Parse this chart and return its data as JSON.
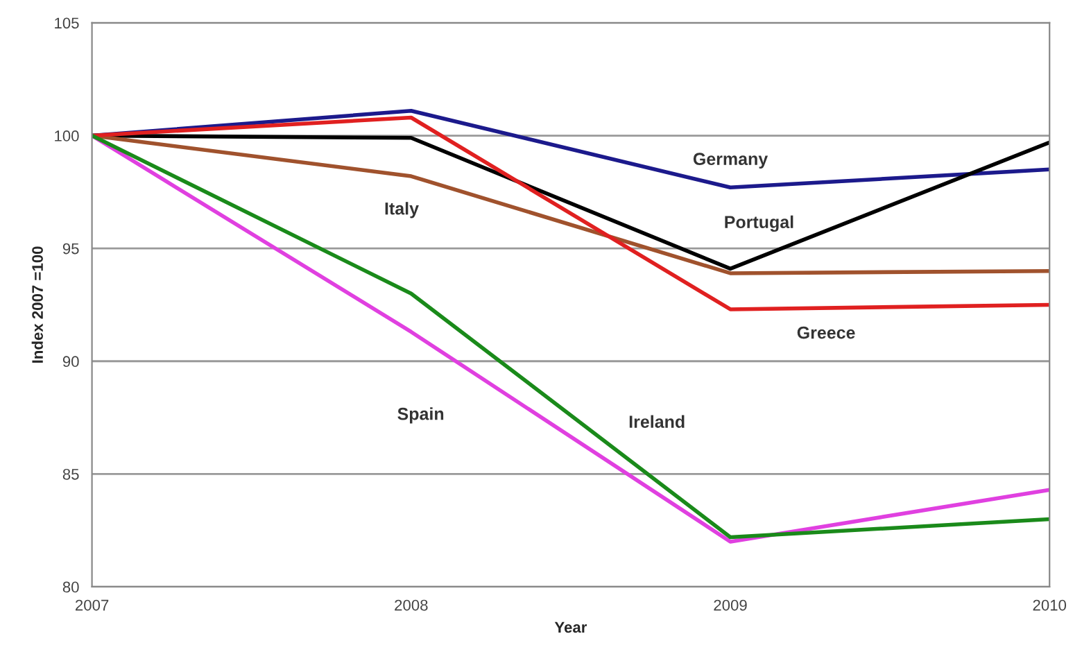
{
  "chart_data": {
    "type": "line",
    "xlabel": "Year",
    "ylabel": "Index 2007 =100",
    "x": [
      2007,
      2008,
      2009,
      2010
    ],
    "xlim": [
      2007,
      2010
    ],
    "xticks": [
      2007,
      2008,
      2009,
      2010
    ],
    "ylim": [
      80,
      105
    ],
    "yticks": [
      80,
      85,
      90,
      95,
      100,
      105
    ],
    "grid": "y",
    "legend": false,
    "marker": "none",
    "line_style": "solid",
    "series": [
      {
        "name": "Germany",
        "color": "#1c1a8c",
        "values": [
          100,
          101.1,
          97.7,
          98.5
        ]
      },
      {
        "name": "Portugal",
        "color": "#000000",
        "values": [
          100,
          99.9,
          94.1,
          99.7
        ]
      },
      {
        "name": "Italy",
        "color": "#a0522d",
        "values": [
          100,
          98.2,
          93.9,
          94.0
        ]
      },
      {
        "name": "Greece",
        "color": "#e02020",
        "values": [
          100,
          100.8,
          92.3,
          92.5
        ]
      },
      {
        "name": "Spain",
        "color": "#e040e0",
        "values": [
          100,
          91.3,
          82.0,
          84.3
        ]
      },
      {
        "name": "Ireland",
        "color": "#1a8a1a",
        "values": [
          100,
          93.0,
          82.2,
          83.0
        ]
      }
    ]
  }
}
